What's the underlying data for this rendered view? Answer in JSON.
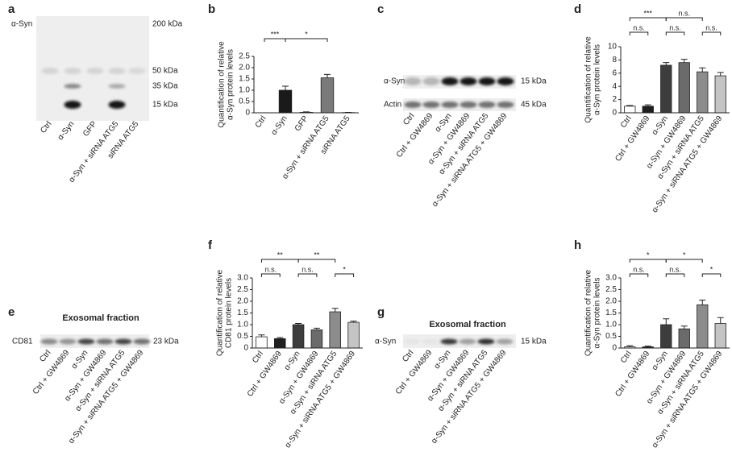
{
  "panel_labels": [
    "a",
    "b",
    "c",
    "d",
    "e",
    "f",
    "g",
    "h"
  ],
  "blots": [
    {
      "rows": [
        {
          "name": "α-Syn",
          "size": "200 kDa"
        }
      ],
      "size_markers": [
        "50 kDa",
        "35 kDa",
        "15 kDa"
      ],
      "lanes": [
        "Ctrl",
        "α-Syn",
        "GFP",
        "α-Syn + siRNA ATG5",
        "siRNA ATG5"
      ]
    },
    {
      "rows": [
        {
          "name": "α-Syn",
          "size": "15 kDa"
        },
        {
          "name": "Actin",
          "size": "45 kDa"
        }
      ],
      "lanes": [
        "Ctrl",
        "Ctrl + GW4869",
        "α-Syn",
        "α-Syn + GW4869",
        "α-Syn + siRNA ATG5",
        "α-Syn + siRNA ATG5 + GW4869"
      ]
    },
    {
      "title": "Exosomal fraction",
      "rows": [
        {
          "name": "CD81",
          "size": "23 kDa"
        }
      ],
      "lanes": [
        "Ctrl",
        "Ctrl + GW4869",
        "α-Syn",
        "α-Syn + GW4869",
        "α-Syn + siRNA ATG5",
        "α-Syn + siRNA ATG5 + GW4869"
      ]
    },
    {
      "title": "Exosomal fraction",
      "rows": [
        {
          "name": "α-Syn",
          "size": "15 kDa"
        }
      ],
      "lanes": [
        "Ctrl",
        "Ctrl + GW4869",
        "α-Syn",
        "α-Syn + GW4869",
        "α-Syn + siRNA ATG5",
        "α-Syn + siRNA ATG5 + GW4869"
      ]
    }
  ],
  "chart_data": [
    {
      "type": "bar",
      "ylabel": [
        "Quantification of relative",
        "α-Syn protein levels"
      ],
      "categories": [
        "Ctrl",
        "α-Syn",
        "GFP",
        "α-Syn + siRNA ATG5",
        "siRNA ATG5"
      ],
      "values": [
        0,
        1.0,
        0.02,
        1.55,
        0.01
      ],
      "errors": [
        0,
        0.18,
        0.02,
        0.15,
        0.01
      ],
      "colors": [
        "#ffffff",
        "#1a1a1a",
        "#ffffff",
        "#7a7a7a",
        "#ffffff"
      ],
      "ylim": [
        0,
        2.5
      ],
      "yticks": [
        0,
        0.5,
        {
          "value": 1,
          "label": "1.0"
        },
        1.5,
        {
          "value": 2,
          "label": "2.0"
        },
        2.5
      ],
      "significance": [
        {
          "label": "***",
          "from": 0,
          "to": 1
        },
        {
          "label": "*",
          "from": 1,
          "to": 3
        }
      ]
    },
    {
      "type": "bar",
      "ylabel": [
        "Quantification of relative",
        "α-Syn protein levels"
      ],
      "categories": [
        "Ctrl",
        "Ctrl + GW4869",
        "α-Syn",
        "α-Syn + GW4869",
        "α-Syn + siRNA ATG5",
        "α-Syn + siRNA ATG5 + GW4869"
      ],
      "values": [
        1.0,
        1.0,
        7.2,
        7.6,
        6.2,
        5.6
      ],
      "errors": [
        0.1,
        0.2,
        0.4,
        0.5,
        0.6,
        0.5
      ],
      "colors": [
        "#ffffff",
        "#1f1f1f",
        "#3d3d3d",
        "#6b6b6b",
        "#8c8c8c",
        "#c4c4c4"
      ],
      "ylim": [
        0,
        10
      ],
      "yticks": [
        0,
        2,
        4,
        6,
        8,
        10
      ],
      "significance": [
        {
          "label": "***",
          "from": 0,
          "to": 2
        },
        {
          "label": "n.s.",
          "from": 2,
          "to": 4
        },
        {
          "label": "n.s.",
          "from": 0,
          "to": 1
        },
        {
          "label": "n.s.",
          "from": 2,
          "to": 3
        },
        {
          "label": "n.s.",
          "from": 4,
          "to": 5
        }
      ]
    },
    {
      "type": "bar",
      "ylabel": [
        "Quantification of relative",
        "CD81 protein levels"
      ],
      "categories": [
        "Ctrl",
        "Ctrl + GW4869",
        "α-Syn",
        "α-Syn + GW4869",
        "α-Syn + siRNA ATG5",
        "α-Syn + siRNA ATG5 + GW4869"
      ],
      "values": [
        0.48,
        0.4,
        1.0,
        0.78,
        1.55,
        1.1
      ],
      "errors": [
        0.08,
        0.05,
        0.05,
        0.07,
        0.15,
        0.05
      ],
      "colors": [
        "#ffffff",
        "#1f1f1f",
        "#3d3d3d",
        "#6b6b6b",
        "#8c8c8c",
        "#c4c4c4"
      ],
      "ylim": [
        0,
        3
      ],
      "yticks": [
        0,
        0.5,
        {
          "value": 1,
          "label": "1.0"
        },
        1.5,
        {
          "value": 2,
          "label": "2.0"
        },
        2.5,
        {
          "value": 3,
          "label": "3.0"
        }
      ],
      "significance": [
        {
          "label": "**",
          "from": 0,
          "to": 2
        },
        {
          "label": "**",
          "from": 2,
          "to": 4
        },
        {
          "label": "n.s.",
          "from": 0,
          "to": 1
        },
        {
          "label": "n.s.",
          "from": 2,
          "to": 3
        },
        {
          "label": "*",
          "from": 4,
          "to": 5
        }
      ]
    },
    {
      "type": "bar",
      "ylabel": [
        "Quantification of relative",
        "α-Syn protein levels"
      ],
      "categories": [
        "Ctrl",
        "Ctrl + GW4869",
        "α-Syn",
        "α-Syn + GW4869",
        "α-Syn + siRNA ATG5",
        "α-Syn + siRNA ATG5 + GW4869"
      ],
      "values": [
        0.05,
        0.05,
        1.0,
        0.82,
        1.85,
        1.05
      ],
      "errors": [
        0.05,
        0.03,
        0.25,
        0.12,
        0.2,
        0.25
      ],
      "colors": [
        "#ffffff",
        "#1f1f1f",
        "#3d3d3d",
        "#6b6b6b",
        "#8c8c8c",
        "#c4c4c4"
      ],
      "ylim": [
        0,
        3
      ],
      "yticks": [
        0,
        0.5,
        {
          "value": 1,
          "label": "1.0"
        },
        1.5,
        {
          "value": 2,
          "label": "2.0"
        },
        2.5,
        {
          "value": 3,
          "label": "3.0"
        }
      ],
      "significance": [
        {
          "label": "*",
          "from": 0,
          "to": 2
        },
        {
          "label": "*",
          "from": 2,
          "to": 4
        },
        {
          "label": "n.s.",
          "from": 0,
          "to": 1
        },
        {
          "label": "n.s.",
          "from": 2,
          "to": 3
        },
        {
          "label": "*",
          "from": 4,
          "to": 5
        }
      ]
    }
  ]
}
